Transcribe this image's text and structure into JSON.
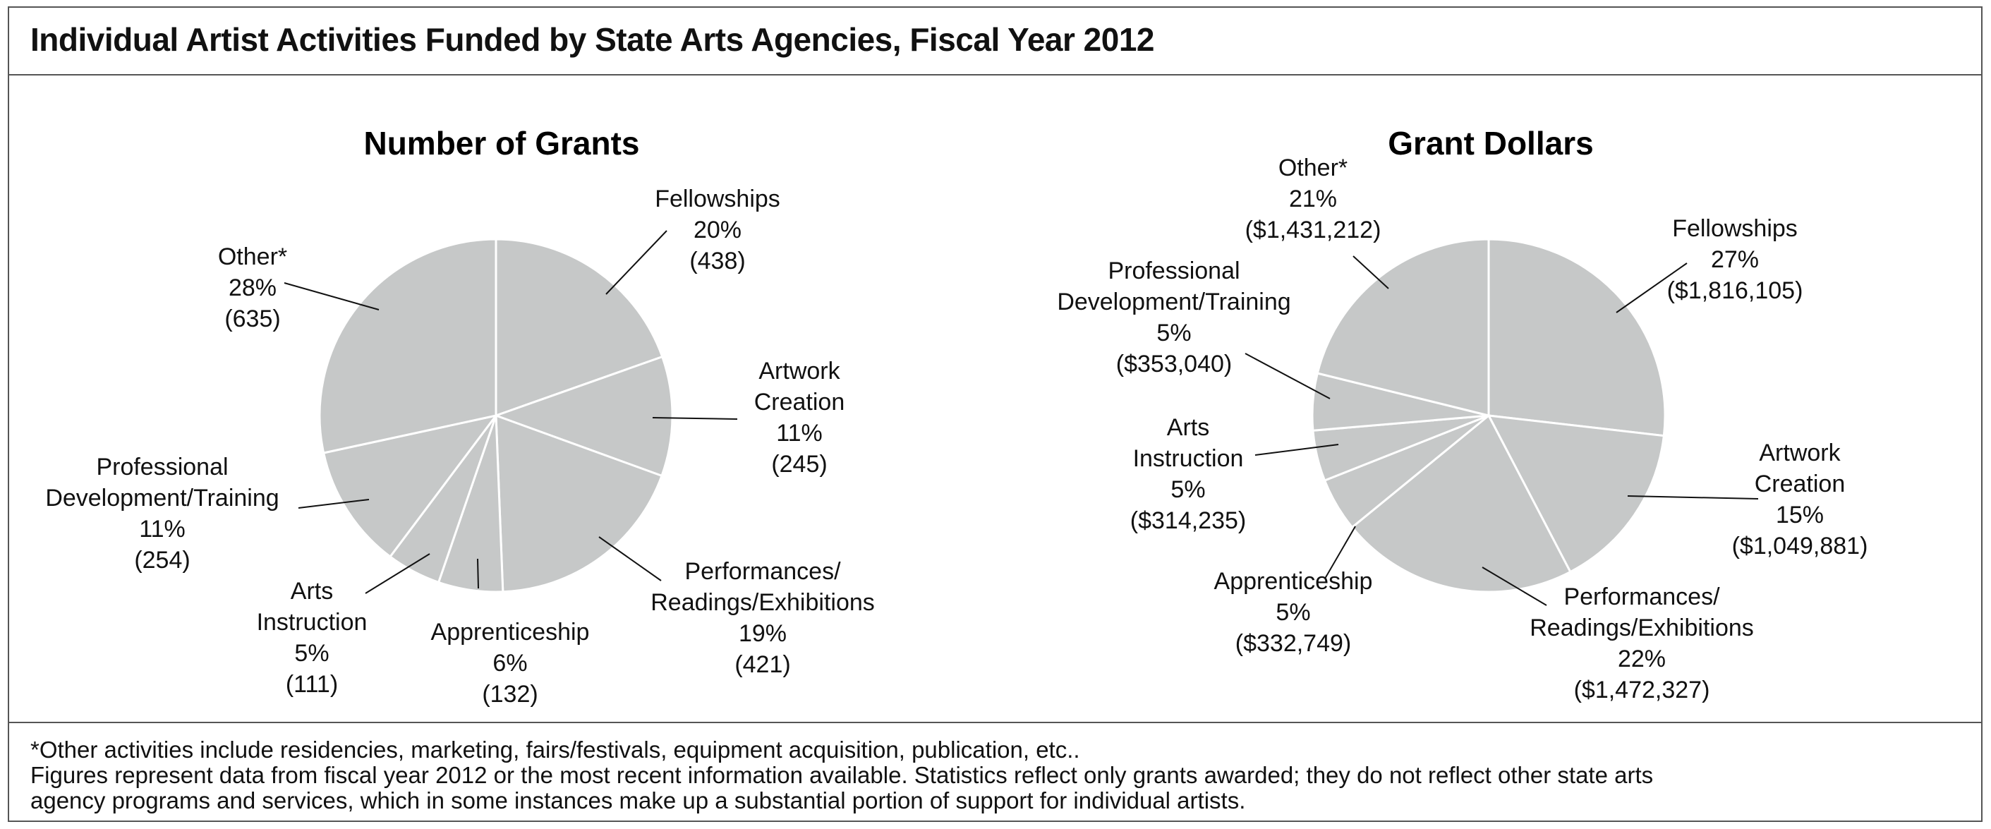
{
  "title": "Individual Artist Activities Funded by State Arts Agencies, Fiscal Year 2012",
  "chart_data": [
    {
      "type": "pie",
      "title": "Number of Grants",
      "slices": [
        {
          "label_lines": [
            "Fellowships",
            "20%",
            "(438)"
          ],
          "value": 438,
          "percent": 20
        },
        {
          "label_lines": [
            "Artwork",
            "Creation",
            "11%",
            "(245)"
          ],
          "value": 245,
          "percent": 11
        },
        {
          "label_lines": [
            "Performances/",
            "Readings/Exhibitions",
            "19%",
            "(421)"
          ],
          "value": 421,
          "percent": 19
        },
        {
          "label_lines": [
            "Apprenticeship",
            "6%",
            "(132)"
          ],
          "value": 132,
          "percent": 6
        },
        {
          "label_lines": [
            "Arts",
            "Instruction",
            "5%",
            "(111)"
          ],
          "value": 111,
          "percent": 5
        },
        {
          "label_lines": [
            "Professional",
            "Development/Training",
            "11%",
            "(254)"
          ],
          "value": 254,
          "percent": 11
        },
        {
          "label_lines": [
            "Other*",
            "28%",
            "(635)"
          ],
          "value": 635,
          "percent": 28
        }
      ],
      "slice_color": "#c6c8c8"
    },
    {
      "type": "pie",
      "title": "Grant Dollars",
      "slices": [
        {
          "label_lines": [
            "Fellowships",
            "27%",
            "($1,816,105)"
          ],
          "value": 1816105,
          "percent": 27
        },
        {
          "label_lines": [
            "Artwork",
            "Creation",
            "15%",
            "($1,049,881)"
          ],
          "value": 1049881,
          "percent": 15
        },
        {
          "label_lines": [
            "Performances/",
            "Readings/Exhibitions",
            "22%",
            "($1,472,327)"
          ],
          "value": 1472327,
          "percent": 22
        },
        {
          "label_lines": [
            "Apprenticeship",
            "5%",
            "($332,749)"
          ],
          "value": 332749,
          "percent": 5
        },
        {
          "label_lines": [
            "Arts",
            "Instruction",
            "5%",
            "($314,235)"
          ],
          "value": 314235,
          "percent": 5
        },
        {
          "label_lines": [
            "Professional",
            "Development/Training",
            "5%",
            "($353,040)"
          ],
          "value": 353040,
          "percent": 5
        },
        {
          "label_lines": [
            "Other*",
            "21%",
            "($1,431,212)"
          ],
          "value": 1431212,
          "percent": 21
        }
      ],
      "slice_color": "#c6c8c8"
    }
  ],
  "footer": {
    "note1": "*Other activities include residencies, marketing, fairs/festivals, equipment acquisition, publication, etc..",
    "note2": "Figures represent data from fiscal year 2012 or the most recent information available. Statistics reflect only grants awarded; they do not reflect other state arts",
    "note3": "agency programs and services, which in some instances make up a substantial portion of support for individual artists."
  }
}
